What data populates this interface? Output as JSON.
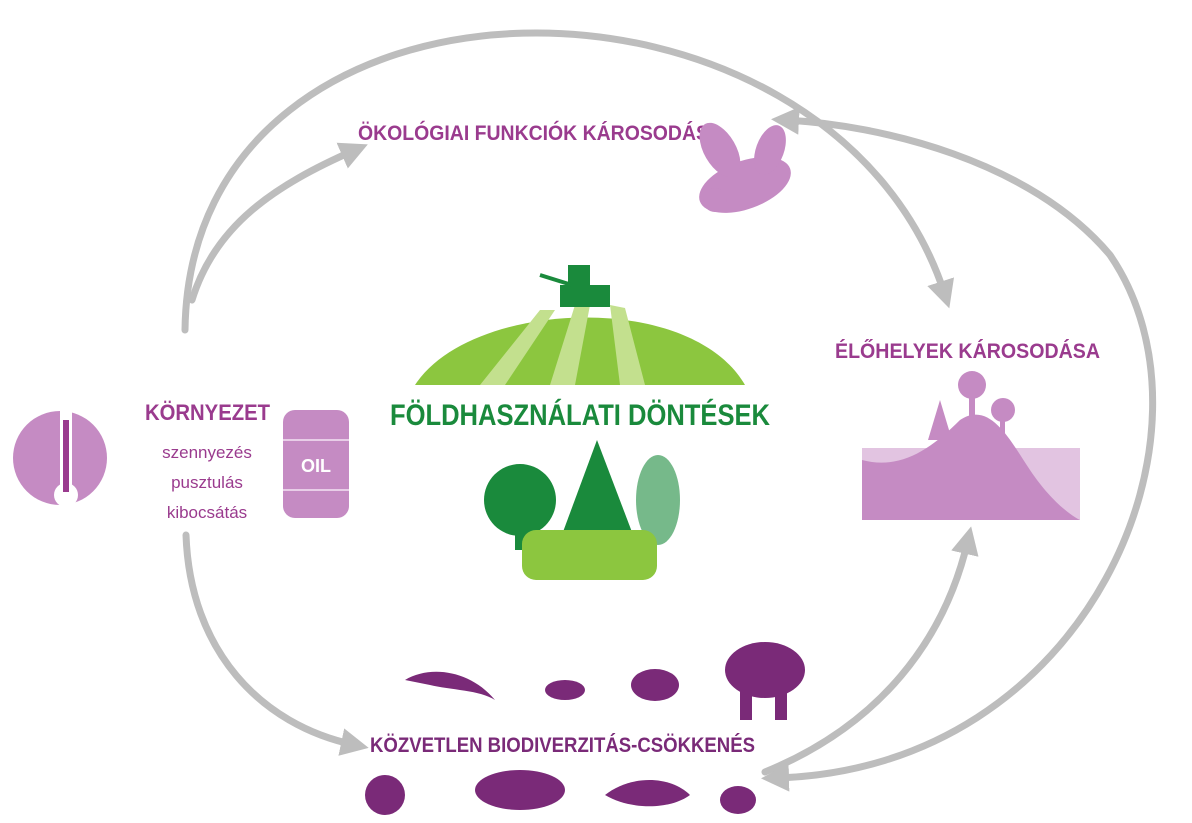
{
  "nodes": [
    {
      "label": "ÖKOLÓGIAI FUNKCIÓK KÁROSODÁSA"
    },
    {
      "label": "ÉLŐHELYEK KÁROSODÁSA"
    },
    {
      "label": "KÖRNYEZET",
      "items": [
        "szennyezés",
        "pusztulás",
        "kibocsátás"
      ],
      "barrel": "OIL"
    },
    {
      "label": "FÖLDHASZNÁLATI DÖNTÉSEK"
    },
    {
      "label": "KÖZVETLEN BIODIVERZITÁS-CSÖKKENÉS"
    }
  ]
}
